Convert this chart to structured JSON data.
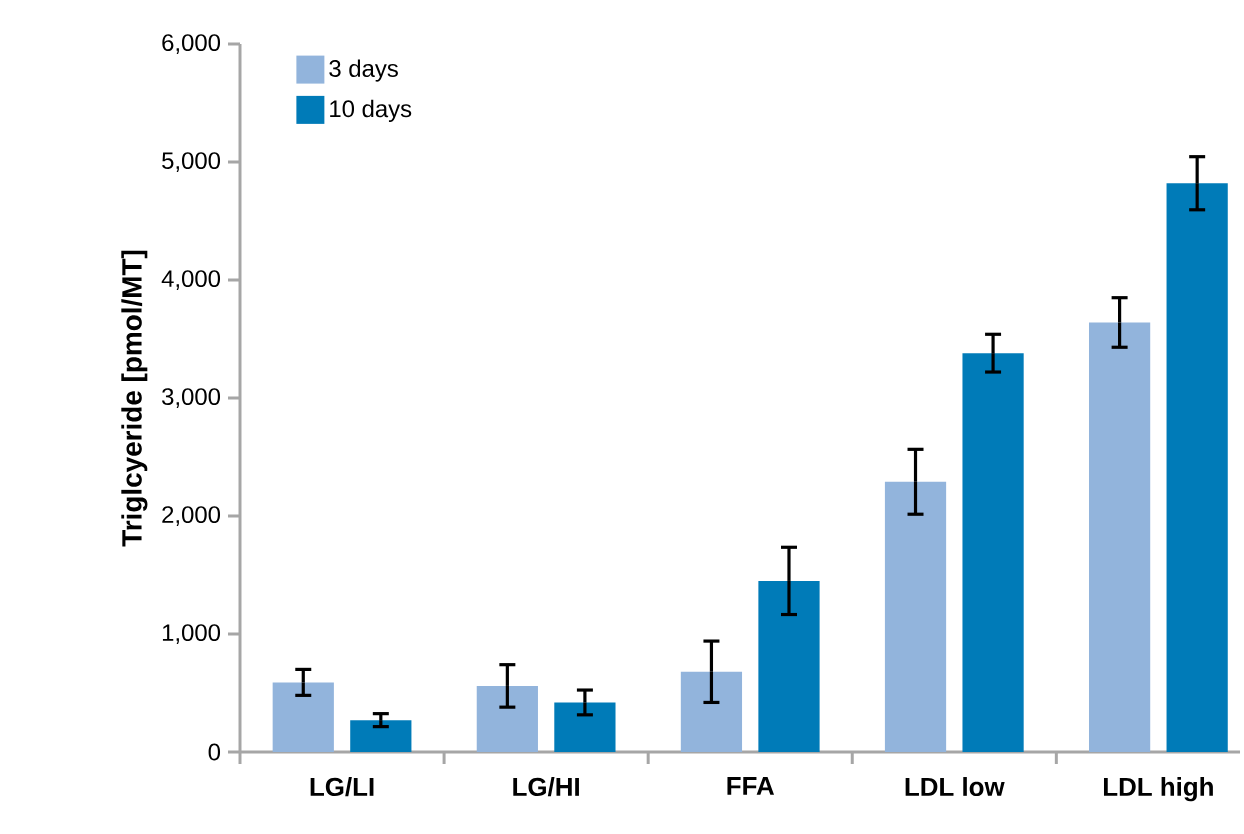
{
  "chart_data": {
    "type": "bar",
    "ylabel": "Triglcyeride [pmol/MT]",
    "categories": [
      "LG/LI",
      "LG/HI",
      "FFA",
      "LDL low",
      "LDL high"
    ],
    "series": [
      {
        "name": "3 days",
        "color": "#92b4dc",
        "values": [
          590,
          560,
          680,
          2290,
          3640
        ],
        "errors": [
          110,
          180,
          260,
          275,
          210
        ]
      },
      {
        "name": "10 days",
        "color": "#007bb8",
        "values": [
          270,
          420,
          1450,
          3380,
          4820
        ],
        "errors": [
          55,
          105,
          285,
          160,
          225
        ]
      }
    ],
    "ylim": [
      0,
      6000
    ],
    "yticks": [
      {
        "value": 0,
        "label": "0"
      },
      {
        "value": 1000,
        "label": "1,000"
      },
      {
        "value": 2000,
        "label": "2,000"
      },
      {
        "value": 3000,
        "label": "3,000"
      },
      {
        "value": 4000,
        "label": "4,000"
      },
      {
        "value": 5000,
        "label": "5,000"
      },
      {
        "value": 6000,
        "label": "6,000"
      }
    ],
    "legend": "top left"
  }
}
